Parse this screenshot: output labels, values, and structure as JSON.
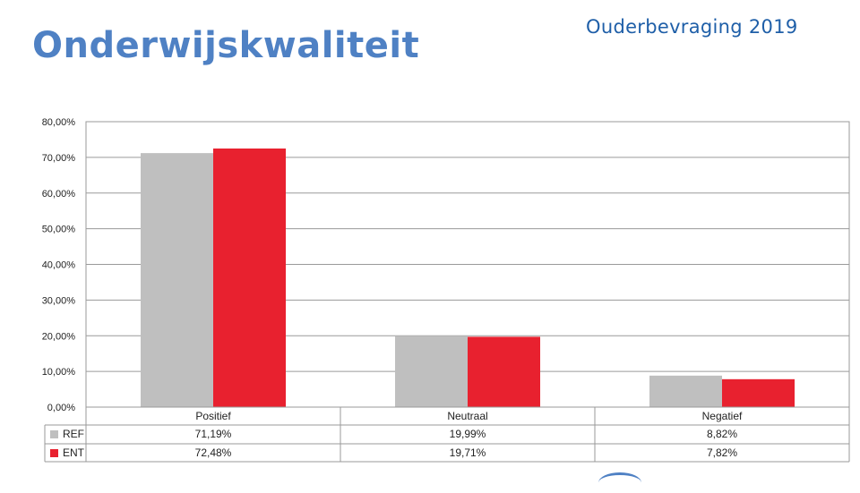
{
  "slide": {
    "title": "Onderwijskwaliteit",
    "survey_title": "Ouderbevraging 2019"
  },
  "colors": {
    "title": "#4f81c4",
    "survey_title": "#1f5fa8",
    "ref": "#bfbfbf",
    "ent": "#e8212f",
    "grid": "#9a9a9a"
  },
  "chart_data": {
    "type": "bar",
    "title": "",
    "xlabel": "",
    "ylabel": "",
    "ylim": [
      0,
      80
    ],
    "yticks": [
      0,
      10,
      20,
      30,
      40,
      50,
      60,
      70,
      80
    ],
    "ytick_labels": [
      "0,00%",
      "10,00%",
      "20,00%",
      "30,00%",
      "40,00%",
      "50,00%",
      "60,00%",
      "70,00%",
      "80,00%"
    ],
    "grid": true,
    "legend": "data-table",
    "categories": [
      "Positief",
      "Neutraal",
      "Negatief"
    ],
    "series": [
      {
        "name": "REF",
        "color": "#bfbfbf",
        "values": [
          71.19,
          19.99,
          8.82
        ],
        "labels": [
          "71,19%",
          "19,99%",
          "8,82%"
        ]
      },
      {
        "name": "ENT",
        "color": "#e8212f",
        "values": [
          72.48,
          19.71,
          7.82
        ],
        "labels": [
          "72,48%",
          "19,71%",
          "7,82%"
        ]
      }
    ]
  }
}
